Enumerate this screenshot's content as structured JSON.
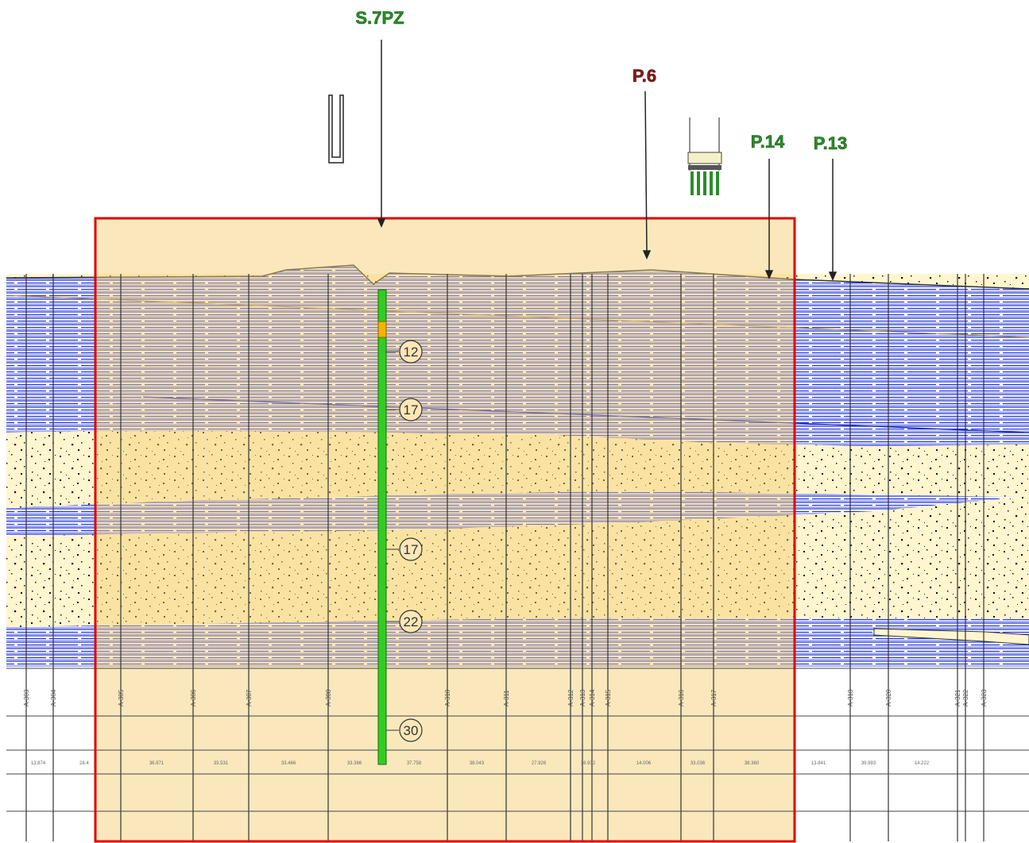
{
  "boreholes": [
    {
      "label": "S.7PZ",
      "color": "#2e8b2e"
    },
    {
      "label": "P.6",
      "color": "#8b1a1a"
    },
    {
      "label": "P.14",
      "color": "#2e8b2e"
    },
    {
      "label": "P.13",
      "color": "#2e8b2e"
    }
  ],
  "depth_markers": [
    "12",
    "17",
    "17",
    "22",
    "30"
  ],
  "stations": [
    "A-303",
    "A-304",
    "A-305",
    "A-306",
    "A-307",
    "A-308",
    "A-310",
    "A-311",
    "A-312",
    "A-313",
    "A-314",
    "A-315",
    "A-316",
    "A-317",
    "A-318",
    "A-320",
    "A-321",
    "A-322",
    "A-323"
  ],
  "distances": [
    "13.874",
    "28.4",
    "36.971",
    "33.531",
    "33.466",
    "33.386",
    "37.758",
    "38.043",
    "27.926",
    "36.932",
    "14.006",
    "33.036",
    "38.360",
    "13.841",
    "39.993",
    "14.222"
  ],
  "colors": {
    "highlight_frame": "#e00000",
    "highlight_fill": "#fde7b6",
    "clay": "#2233dd",
    "sand": "#fff6cf",
    "pile": "#33cc22"
  }
}
